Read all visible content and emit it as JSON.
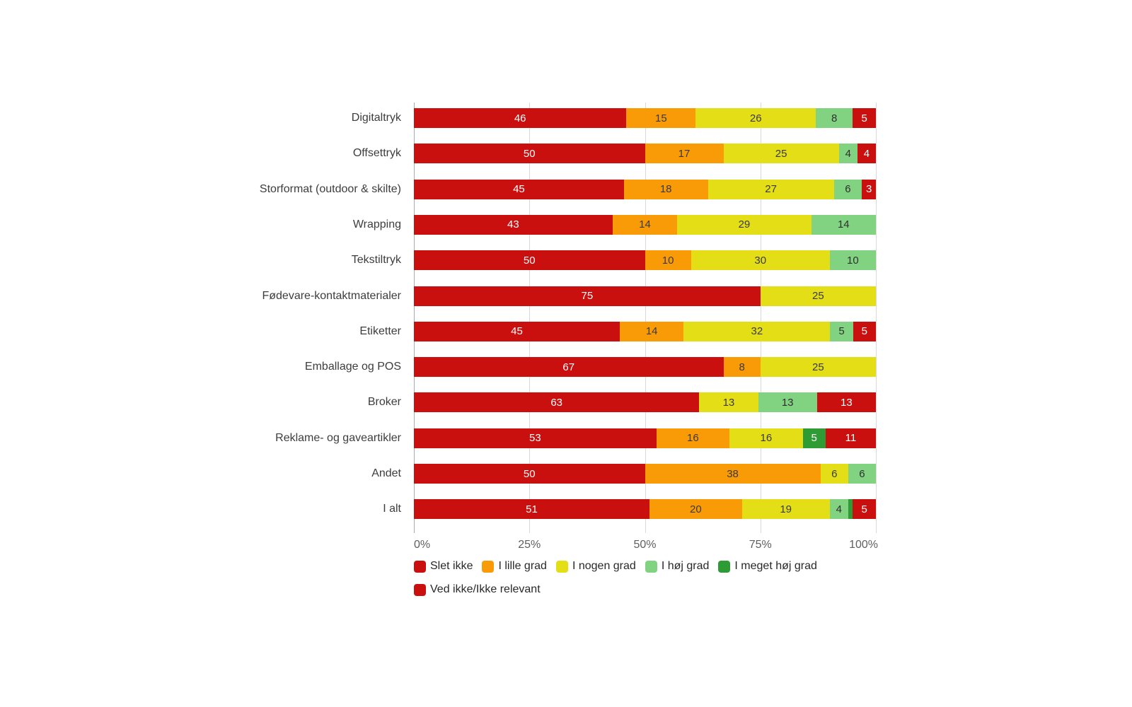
{
  "page": {
    "background_color": "#FFFFFF"
  },
  "chart_data": {
    "type": "bar",
    "variant": "horizontal-stacked-percent",
    "title": "",
    "xlabel": "",
    "ylabel": "",
    "xlim": [
      0,
      100
    ],
    "grid": true,
    "legend_position": "bottom-left",
    "x_axis": {
      "ticks": [
        {
          "label": "0%",
          "value": 0
        },
        {
          "label": "25%",
          "value": 25
        },
        {
          "label": "50%",
          "value": 50
        },
        {
          "label": "75%",
          "value": 75
        },
        {
          "label": "100%",
          "value": 100
        }
      ]
    },
    "colors": {
      "red": "#C9100F",
      "orange": "#F99B07",
      "yellow": "#E4DE17",
      "light_green": "#81D382",
      "dark_green": "#2E9B35",
      "gridline": "#D9D9D9",
      "axis_line": "#ABABAB"
    },
    "legend": [
      {
        "name": "Slet ikke",
        "color": "#C9100F",
        "text_color": "#FFFFFF",
        "row": 1
      },
      {
        "name": "I lille grad",
        "color": "#F99B07",
        "text_color": "#3A3A3A",
        "row": 1
      },
      {
        "name": "I nogen grad",
        "color": "#E4DE17",
        "text_color": "#3A3A3A",
        "row": 1
      },
      {
        "name": "I høj grad",
        "color": "#81D382",
        "text_color": "#2F2F2F",
        "row": 1
      },
      {
        "name": "I meget høj grad",
        "color": "#2E9B35",
        "text_color": "#FFFFFF",
        "row": 1
      },
      {
        "name": "Ved ikke/Ikke relevant",
        "color": "#C9100F",
        "text_color": "#FFFFFF",
        "row": 2
      }
    ],
    "categories": [
      "Digitaltryk",
      "Offsettryk",
      "Storformat (outdoor & skilte)",
      "Wrapping",
      "Tekstiltryk",
      "Fødevare-kontaktmaterialer",
      "Etiketter",
      "Emballage og POS",
      "Broker",
      "Reklame- og gaveartikler",
      "Andet",
      "I alt"
    ],
    "rows": [
      {
        "category": "Digitaltryk",
        "segments": [
          {
            "series": "Slet ikke",
            "value": 46
          },
          {
            "series": "I lille grad",
            "value": 15
          },
          {
            "series": "I nogen grad",
            "value": 26
          },
          {
            "series": "I høj grad",
            "value": 8
          },
          {
            "series": "Ved ikke/Ikke relevant",
            "value": 5
          }
        ]
      },
      {
        "category": "Offsettryk",
        "segments": [
          {
            "series": "Slet ikke",
            "value": 50
          },
          {
            "series": "I lille grad",
            "value": 17
          },
          {
            "series": "I nogen grad",
            "value": 25
          },
          {
            "series": "I høj grad",
            "value": 4
          },
          {
            "series": "Ved ikke/Ikke relevant",
            "value": 4
          }
        ]
      },
      {
        "category": "Storformat (outdoor & skilte)",
        "segments": [
          {
            "series": "Slet ikke",
            "value": 45
          },
          {
            "series": "I lille grad",
            "value": 18
          },
          {
            "series": "I nogen grad",
            "value": 27
          },
          {
            "series": "I høj grad",
            "value": 6
          },
          {
            "series": "Ved ikke/Ikke relevant",
            "value": 3
          }
        ]
      },
      {
        "category": "Wrapping",
        "segments": [
          {
            "series": "Slet ikke",
            "value": 43
          },
          {
            "series": "I lille grad",
            "value": 14
          },
          {
            "series": "I nogen grad",
            "value": 29
          },
          {
            "series": "I høj grad",
            "value": 14
          }
        ]
      },
      {
        "category": "Tekstiltryk",
        "segments": [
          {
            "series": "Slet ikke",
            "value": 50
          },
          {
            "series": "I lille grad",
            "value": 10
          },
          {
            "series": "I nogen grad",
            "value": 30
          },
          {
            "series": "I høj grad",
            "value": 10
          }
        ]
      },
      {
        "category": "Fødevare-kontaktmaterialer",
        "segments": [
          {
            "series": "Slet ikke",
            "value": 75
          },
          {
            "series": "I nogen grad",
            "value": 25
          }
        ]
      },
      {
        "category": "Etiketter",
        "segments": [
          {
            "series": "Slet ikke",
            "value": 45
          },
          {
            "series": "I lille grad",
            "value": 14
          },
          {
            "series": "I nogen grad",
            "value": 32
          },
          {
            "series": "I høj grad",
            "value": 5
          },
          {
            "series": "Ved ikke/Ikke relevant",
            "value": 5
          }
        ]
      },
      {
        "category": "Emballage og POS",
        "segments": [
          {
            "series": "Slet ikke",
            "value": 67
          },
          {
            "series": "I lille grad",
            "value": 8
          },
          {
            "series": "I nogen grad",
            "value": 25
          }
        ]
      },
      {
        "category": "Broker",
        "segments": [
          {
            "series": "Slet ikke",
            "value": 63
          },
          {
            "series": "I nogen grad",
            "value": 13
          },
          {
            "series": "I høj grad",
            "value": 13
          },
          {
            "series": "Ved ikke/Ikke relevant",
            "value": 13
          }
        ]
      },
      {
        "category": "Reklame- og gaveartikler",
        "segments": [
          {
            "series": "Slet ikke",
            "value": 53
          },
          {
            "series": "I lille grad",
            "value": 16
          },
          {
            "series": "I nogen grad",
            "value": 16
          },
          {
            "series": "I meget høj grad",
            "value": 5
          },
          {
            "series": "Ved ikke/Ikke relevant",
            "value": 11
          }
        ]
      },
      {
        "category": "Andet",
        "segments": [
          {
            "series": "Slet ikke",
            "value": 50
          },
          {
            "series": "I lille grad",
            "value": 38
          },
          {
            "series": "I nogen grad",
            "value": 6
          },
          {
            "series": "I høj grad",
            "value": 6
          }
        ]
      },
      {
        "category": "I alt",
        "segments": [
          {
            "series": "Slet ikke",
            "value": 51
          },
          {
            "series": "I lille grad",
            "value": 20
          },
          {
            "series": "I nogen grad",
            "value": 19
          },
          {
            "series": "I høj grad",
            "value": 4
          },
          {
            "series": "I meget høj grad",
            "value": 1,
            "label": ""
          },
          {
            "series": "Ved ikke/Ikke relevant",
            "value": 5
          }
        ]
      }
    ]
  }
}
